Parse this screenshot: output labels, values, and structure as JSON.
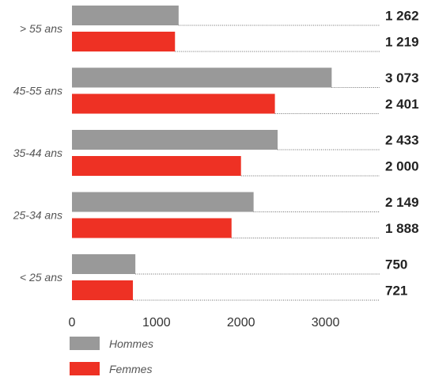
{
  "chart_data": {
    "type": "bar",
    "orientation": "horizontal",
    "categories": [
      "> 55 ans",
      "45-55 ans",
      "35-44 ans",
      "25-34 ans",
      "< 25 ans"
    ],
    "series": [
      {
        "name": "Hommes",
        "color": "#999999",
        "values": [
          1262,
          3073,
          2433,
          2149,
          750
        ],
        "labels": [
          "1 262",
          "3 073",
          "2 433",
          "2 149",
          "750"
        ]
      },
      {
        "name": "Femmes",
        "color": "#ee3124",
        "values": [
          1219,
          2401,
          2000,
          1888,
          721
        ],
        "labels": [
          "1 219",
          "2 401",
          "2 000",
          "1 888",
          "721"
        ]
      }
    ],
    "xlim": [
      0,
      3500
    ],
    "xticks": [
      0,
      1000,
      2000,
      3000
    ],
    "xtick_labels": [
      "0",
      "1000",
      "2000",
      "3000"
    ],
    "legend_position": "bottom-left",
    "grid": false,
    "value_labels": "right, with dotted leader lines"
  }
}
